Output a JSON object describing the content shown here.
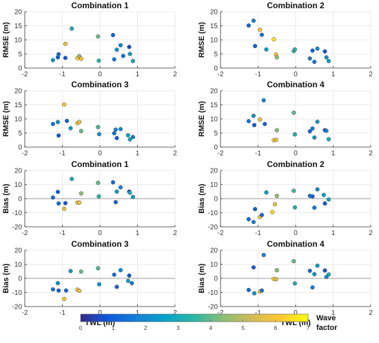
{
  "chart_data": [
    {
      "panel": "rmse-1",
      "type": "scatter",
      "title": "Combination 1",
      "ylabel": "RMSE (m)",
      "xlim": [
        -2,
        2
      ],
      "ylim": [
        0,
        20
      ],
      "xticks": [
        "-2",
        "-1",
        "0",
        "1",
        "2"
      ],
      "yticks": [
        "0",
        "5",
        "10",
        "15",
        "20"
      ],
      "points": [
        {
          "x": -1.25,
          "y": 2.8,
          "c": 2.3
        },
        {
          "x": -1.12,
          "y": 3.8,
          "c": 0.9
        },
        {
          "x": -1.1,
          "y": 4.9,
          "c": 1.4
        },
        {
          "x": -0.92,
          "y": 3.6,
          "c": 0.8
        },
        {
          "x": -0.92,
          "y": 8.6,
          "c": 5.8
        },
        {
          "x": -0.75,
          "y": 14.0,
          "c": 3.1
        },
        {
          "x": -0.6,
          "y": 3.5,
          "c": 6.3
        },
        {
          "x": -0.55,
          "y": 4.2,
          "c": 4.6
        },
        {
          "x": -0.5,
          "y": 3.3,
          "c": 5.9
        },
        {
          "x": -0.05,
          "y": 11.2,
          "c": 4.1
        },
        {
          "x": -0.03,
          "y": 2.6,
          "c": 3.3
        },
        {
          "x": 0.35,
          "y": 11.7,
          "c": 1.2
        },
        {
          "x": 0.38,
          "y": 3.1,
          "c": 1.6
        },
        {
          "x": 0.45,
          "y": 6.5,
          "c": 2.2
        },
        {
          "x": 0.55,
          "y": 8.1,
          "c": 2.0
        },
        {
          "x": 0.62,
          "y": 4.3,
          "c": 1.4
        },
        {
          "x": 0.78,
          "y": 7.5,
          "c": 0.6
        },
        {
          "x": 0.8,
          "y": 5.0,
          "c": 2.6
        },
        {
          "x": 0.88,
          "y": 2.5,
          "c": 3.0
        }
      ]
    },
    {
      "panel": "rmse-2",
      "type": "scatter",
      "title": "Combination 2",
      "ylabel": "RMSE (m)",
      "xlim": [
        -2,
        2
      ],
      "ylim": [
        0,
        20
      ],
      "xticks": [
        "-2",
        "-1",
        "0",
        "1",
        "2"
      ],
      "yticks": [
        "0",
        "5",
        "10",
        "15",
        "20"
      ],
      "points": [
        {
          "x": -1.25,
          "y": 15.1,
          "c": 1.2
        },
        {
          "x": -1.12,
          "y": 16.8,
          "c": 1.8
        },
        {
          "x": -1.08,
          "y": 7.8,
          "c": 1.0
        },
        {
          "x": -0.95,
          "y": 13.6,
          "c": 6.0
        },
        {
          "x": -0.9,
          "y": 11.8,
          "c": 1.3
        },
        {
          "x": -0.78,
          "y": 6.6,
          "c": 2.4
        },
        {
          "x": -0.58,
          "y": 10.2,
          "c": 6.6
        },
        {
          "x": -0.52,
          "y": 4.8,
          "c": 5.8
        },
        {
          "x": -0.5,
          "y": 3.8,
          "c": 4.5
        },
        {
          "x": -0.05,
          "y": 6.0,
          "c": 3.7
        },
        {
          "x": -0.02,
          "y": 6.6,
          "c": 3.2
        },
        {
          "x": 0.38,
          "y": 3.4,
          "c": 1.6
        },
        {
          "x": 0.45,
          "y": 6.2,
          "c": 1.0
        },
        {
          "x": 0.5,
          "y": 2.2,
          "c": 1.5
        },
        {
          "x": 0.58,
          "y": 6.9,
          "c": 2.0
        },
        {
          "x": 0.78,
          "y": 5.9,
          "c": 0.8
        },
        {
          "x": 0.82,
          "y": 3.8,
          "c": 2.2
        },
        {
          "x": 0.88,
          "y": 2.5,
          "c": 2.7
        }
      ]
    },
    {
      "panel": "rmse-3",
      "type": "scatter",
      "title": "Combination 3",
      "ylabel": "RMSE (m)",
      "xlim": [
        -2,
        2
      ],
      "ylim": [
        0,
        20
      ],
      "xticks": [
        "-2",
        "-1",
        "0",
        "1",
        "2"
      ],
      "yticks": [
        "0",
        "5",
        "10",
        "15",
        "20"
      ],
      "points": [
        {
          "x": -1.25,
          "y": 8.2,
          "c": 1.4
        },
        {
          "x": -1.12,
          "y": 8.9,
          "c": 2.2
        },
        {
          "x": -1.1,
          "y": 4.1,
          "c": 0.9
        },
        {
          "x": -0.95,
          "y": 15.1,
          "c": 6.1
        },
        {
          "x": -0.88,
          "y": 9.3,
          "c": 1.2
        },
        {
          "x": -0.78,
          "y": 6.7,
          "c": 2.5
        },
        {
          "x": -0.6,
          "y": 8.5,
          "c": 6.0
        },
        {
          "x": -0.55,
          "y": 8.9,
          "c": 5.7
        },
        {
          "x": -0.5,
          "y": 5.7,
          "c": 4.0
        },
        {
          "x": -0.05,
          "y": 7.1,
          "c": 3.8
        },
        {
          "x": -0.02,
          "y": 4.6,
          "c": 2.2
        },
        {
          "x": 0.38,
          "y": 4.9,
          "c": 1.3
        },
        {
          "x": 0.42,
          "y": 6.2,
          "c": 1.7
        },
        {
          "x": 0.45,
          "y": 3.2,
          "c": 1.0
        },
        {
          "x": 0.55,
          "y": 6.4,
          "c": 2.0
        },
        {
          "x": 0.75,
          "y": 4.2,
          "c": 2.6
        },
        {
          "x": 0.8,
          "y": 2.7,
          "c": 2.9
        },
        {
          "x": 0.88,
          "y": 3.6,
          "c": 1.6
        }
      ]
    },
    {
      "panel": "rmse-4",
      "type": "scatter",
      "title": "Combination 4",
      "ylabel": "RMSE (m)",
      "xlim": [
        -2,
        2
      ],
      "ylim": [
        0,
        20
      ],
      "xticks": [
        "-2",
        "-1",
        "0",
        "1",
        "2"
      ],
      "yticks": [
        "0",
        "5",
        "10",
        "15",
        "20"
      ],
      "points": [
        {
          "x": -1.25,
          "y": 9.2,
          "c": 1.5
        },
        {
          "x": -1.12,
          "y": 11.1,
          "c": 2.2
        },
        {
          "x": -1.1,
          "y": 7.8,
          "c": 0.9
        },
        {
          "x": -0.95,
          "y": 9.8,
          "c": 5.8
        },
        {
          "x": -0.85,
          "y": 16.6,
          "c": 1.8
        },
        {
          "x": -0.82,
          "y": 8.2,
          "c": 1.0
        },
        {
          "x": -0.58,
          "y": 2.4,
          "c": 6.1
        },
        {
          "x": -0.52,
          "y": 2.6,
          "c": 5.6
        },
        {
          "x": -0.5,
          "y": 6.0,
          "c": 4.4
        },
        {
          "x": -0.05,
          "y": 12.2,
          "c": 4.0
        },
        {
          "x": -0.02,
          "y": 4.5,
          "c": 3.0
        },
        {
          "x": 0.38,
          "y": 5.6,
          "c": 1.2
        },
        {
          "x": 0.45,
          "y": 6.6,
          "c": 1.6
        },
        {
          "x": 0.5,
          "y": 3.4,
          "c": 2.2
        },
        {
          "x": 0.58,
          "y": 9.0,
          "c": 2.4
        },
        {
          "x": 0.78,
          "y": 6.0,
          "c": 0.7
        },
        {
          "x": 0.82,
          "y": 5.8,
          "c": 1.9
        },
        {
          "x": 0.88,
          "y": 2.8,
          "c": 2.9
        }
      ]
    },
    {
      "panel": "bias-1",
      "type": "scatter",
      "title": "Combination 1",
      "ylabel": "Bias (m)",
      "xlim": [
        -2,
        2
      ],
      "ylim": [
        -20,
        20
      ],
      "xticks": [
        "-2",
        "-1",
        "0",
        "1",
        "2"
      ],
      "yticks": [
        "-20",
        "-10",
        "0",
        "10",
        "20"
      ],
      "points": [
        {
          "x": -1.25,
          "y": 0.8,
          "c": 1.2
        },
        {
          "x": -1.12,
          "y": 4.8,
          "c": 1.0
        },
        {
          "x": -1.1,
          "y": -3.4,
          "c": 1.4
        },
        {
          "x": -0.95,
          "y": -7.2,
          "c": 5.8
        },
        {
          "x": -0.92,
          "y": -3.2,
          "c": 0.8
        },
        {
          "x": -0.75,
          "y": 14.0,
          "c": 3.1
        },
        {
          "x": -0.6,
          "y": -2.8,
          "c": 6.1
        },
        {
          "x": -0.55,
          "y": -2.8,
          "c": 5.8
        },
        {
          "x": -0.5,
          "y": 3.7,
          "c": 4.4
        },
        {
          "x": -0.05,
          "y": 11.2,
          "c": 4.0
        },
        {
          "x": -0.03,
          "y": 1.6,
          "c": 3.3
        },
        {
          "x": 0.35,
          "y": 11.6,
          "c": 1.2
        },
        {
          "x": 0.42,
          "y": -2.5,
          "c": 1.0
        },
        {
          "x": 0.45,
          "y": 5.0,
          "c": 2.3
        },
        {
          "x": 0.55,
          "y": 8.0,
          "c": 1.9
        },
        {
          "x": 0.78,
          "y": 5.0,
          "c": 0.6
        },
        {
          "x": 0.8,
          "y": 4.2,
          "c": 3.0
        },
        {
          "x": 0.88,
          "y": 1.2,
          "c": 2.4
        }
      ]
    },
    {
      "panel": "bias-2",
      "type": "scatter",
      "title": "Combination 2",
      "ylabel": "Bias (m)",
      "xlim": [
        -2,
        2
      ],
      "ylim": [
        -20,
        20
      ],
      "xticks": [
        "-2",
        "-1",
        "0",
        "1",
        "2"
      ],
      "yticks": [
        "-20",
        "-10",
        "0",
        "10",
        "20"
      ],
      "points": [
        {
          "x": -1.25,
          "y": -14.6,
          "c": 1.2
        },
        {
          "x": -1.12,
          "y": -16.6,
          "c": 1.8
        },
        {
          "x": -1.08,
          "y": -7.4,
          "c": 1.0
        },
        {
          "x": -0.95,
          "y": -13.0,
          "c": 6.0
        },
        {
          "x": -0.9,
          "y": -11.6,
          "c": 1.3
        },
        {
          "x": -0.78,
          "y": 4.4,
          "c": 2.4
        },
        {
          "x": -0.62,
          "y": -9.6,
          "c": 6.4
        },
        {
          "x": -0.55,
          "y": -4.0,
          "c": 5.8
        },
        {
          "x": -0.5,
          "y": 2.0,
          "c": 4.5
        },
        {
          "x": -0.05,
          "y": 5.6,
          "c": 3.7
        },
        {
          "x": -0.02,
          "y": -6.2,
          "c": 3.2
        },
        {
          "x": 0.38,
          "y": 2.0,
          "c": 1.6
        },
        {
          "x": 0.45,
          "y": 1.6,
          "c": 1.0
        },
        {
          "x": 0.5,
          "y": -6.4,
          "c": 1.4
        },
        {
          "x": 0.58,
          "y": 6.6,
          "c": 2.0
        },
        {
          "x": 0.75,
          "y": 2.6,
          "c": 2.6
        },
        {
          "x": 0.78,
          "y": -3.4,
          "c": 0.8
        },
        {
          "x": 0.88,
          "y": -0.6,
          "c": 2.8
        }
      ]
    },
    {
      "panel": "bias-3",
      "type": "scatter",
      "title": "Combination 3",
      "ylabel": "Bias (m)",
      "xlim": [
        -2,
        2
      ],
      "ylim": [
        -20,
        20
      ],
      "xticks": [
        "-2",
        "-1",
        "0",
        "1",
        "2"
      ],
      "yticks": [
        "-20",
        "-10",
        "0",
        "10",
        "20"
      ],
      "points": [
        {
          "x": -1.25,
          "y": -7.8,
          "c": 1.4
        },
        {
          "x": -1.12,
          "y": -3.4,
          "c": 2.2
        },
        {
          "x": -1.1,
          "y": -8.6,
          "c": 1.0
        },
        {
          "x": -0.95,
          "y": -14.6,
          "c": 6.1
        },
        {
          "x": -0.9,
          "y": -8.6,
          "c": 1.2
        },
        {
          "x": -0.78,
          "y": 5.2,
          "c": 2.5
        },
        {
          "x": -0.6,
          "y": -8.0,
          "c": 6.0
        },
        {
          "x": -0.55,
          "y": -8.8,
          "c": 5.7
        },
        {
          "x": -0.5,
          "y": 4.8,
          "c": 4.0
        },
        {
          "x": -0.05,
          "y": 7.2,
          "c": 3.8
        },
        {
          "x": -0.02,
          "y": -4.2,
          "c": 2.2
        },
        {
          "x": 0.38,
          "y": 2.6,
          "c": 1.3
        },
        {
          "x": 0.45,
          "y": -6.0,
          "c": 1.0
        },
        {
          "x": 0.55,
          "y": 5.8,
          "c": 2.0
        },
        {
          "x": 0.75,
          "y": -1.8,
          "c": 2.6
        },
        {
          "x": 0.78,
          "y": 2.0,
          "c": 0.7
        },
        {
          "x": 0.85,
          "y": -3.4,
          "c": 1.6
        }
      ]
    },
    {
      "panel": "bias-4",
      "type": "scatter",
      "title": "Combination 4",
      "ylabel": "Bias (m)",
      "xlim": [
        -2,
        2
      ],
      "ylim": [
        -20,
        20
      ],
      "xticks": [
        "-2",
        "-1",
        "0",
        "1",
        "2"
      ],
      "yticks": [
        "-20",
        "-10",
        "0",
        "10",
        "20"
      ],
      "points": [
        {
          "x": -1.25,
          "y": -8.2,
          "c": 1.2
        },
        {
          "x": -1.12,
          "y": 7.8,
          "c": 0.9
        },
        {
          "x": -1.1,
          "y": -10.6,
          "c": 2.2
        },
        {
          "x": -0.95,
          "y": -9.4,
          "c": 5.8
        },
        {
          "x": -0.9,
          "y": -8.6,
          "c": 1.5
        },
        {
          "x": -0.85,
          "y": 16.6,
          "c": 1.8
        },
        {
          "x": -0.58,
          "y": -0.4,
          "c": 6.1
        },
        {
          "x": -0.52,
          "y": -0.6,
          "c": 5.6
        },
        {
          "x": -0.5,
          "y": 5.8,
          "c": 4.4
        },
        {
          "x": -0.05,
          "y": 12.2,
          "c": 4.0
        },
        {
          "x": -0.02,
          "y": -3.6,
          "c": 3.0
        },
        {
          "x": 0.38,
          "y": 5.4,
          "c": 1.2
        },
        {
          "x": 0.45,
          "y": -6.4,
          "c": 1.6
        },
        {
          "x": 0.5,
          "y": 3.0,
          "c": 2.2
        },
        {
          "x": 0.58,
          "y": 9.0,
          "c": 2.4
        },
        {
          "x": 0.78,
          "y": 5.6,
          "c": 0.7
        },
        {
          "x": 0.82,
          "y": 1.0,
          "c": 1.9
        },
        {
          "x": 0.88,
          "y": 2.8,
          "c": 2.9
        }
      ]
    }
  ],
  "x_axis_label": "TWL (m)",
  "colorbar": {
    "title_line1": "Wave",
    "title_line2": "factor",
    "ticks": [
      "0",
      "1",
      "2",
      "3",
      "4",
      "5",
      "6",
      "7"
    ],
    "range": [
      0,
      7
    ],
    "colormap": "parula",
    "stops": [
      "#352a87",
      "#0f5cdd",
      "#1481d6",
      "#06a4ca",
      "#2eb7a4",
      "#87bf77",
      "#d1bb59",
      "#fec832",
      "#f9fb0e"
    ]
  }
}
